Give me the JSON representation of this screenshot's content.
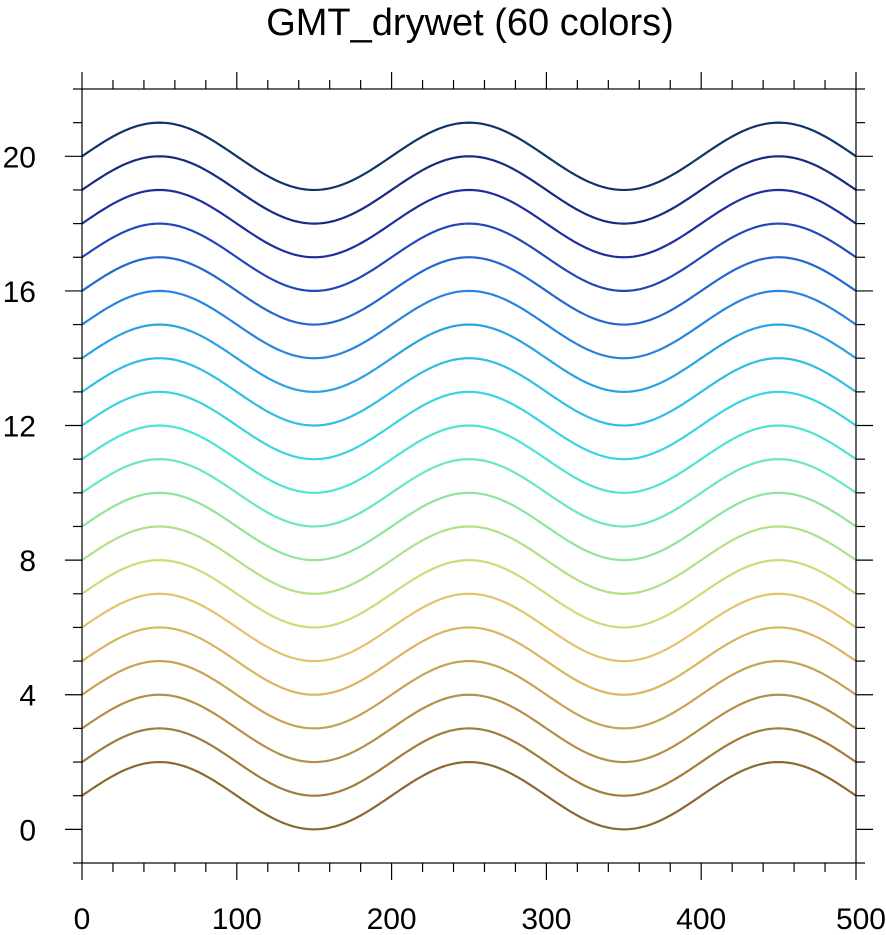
{
  "chart_data": {
    "type": "line",
    "title": "GMT_drywet (60 colors)",
    "xlabel": "",
    "ylabel": "",
    "xlim": [
      0,
      500
    ],
    "ylim": [
      -1,
      22
    ],
    "x_ticks": [
      0,
      100,
      200,
      300,
      400,
      500
    ],
    "y_ticks": [
      0,
      4,
      8,
      12,
      16,
      20
    ],
    "x_minor_step": 20,
    "y_minor_step": 1,
    "grid": false,
    "legend": "none",
    "curve": {
      "function": "y = offset + sin(2*pi*x/200)",
      "amplitude": 1,
      "period": 200,
      "x_start": 0,
      "x_end": 500
    },
    "series": [
      {
        "offset": 1,
        "color": "#8b6a2e"
      },
      {
        "offset": 2,
        "color": "#a07d3a"
      },
      {
        "offset": 3,
        "color": "#b38f47"
      },
      {
        "offset": 4,
        "color": "#c7a254"
      },
      {
        "offset": 5,
        "color": "#d9b65e"
      },
      {
        "offset": 6,
        "color": "#e3c46a"
      },
      {
        "offset": 7,
        "color": "#d5d779"
      },
      {
        "offset": 8,
        "color": "#b1e087"
      },
      {
        "offset": 9,
        "color": "#8ee59b"
      },
      {
        "offset": 10,
        "color": "#6ae8b8"
      },
      {
        "offset": 11,
        "color": "#4ee4d2"
      },
      {
        "offset": 12,
        "color": "#3ad3e4"
      },
      {
        "offset": 13,
        "color": "#2fbde6"
      },
      {
        "offset": 14,
        "color": "#2ba1e3"
      },
      {
        "offset": 15,
        "color": "#2884dc"
      },
      {
        "offset": 16,
        "color": "#2566cf"
      },
      {
        "offset": 17,
        "color": "#2247b8"
      },
      {
        "offset": 18,
        "color": "#1e2e9c"
      },
      {
        "offset": 19,
        "color": "#172b80"
      },
      {
        "offset": 20,
        "color": "#10346a"
      }
    ]
  }
}
